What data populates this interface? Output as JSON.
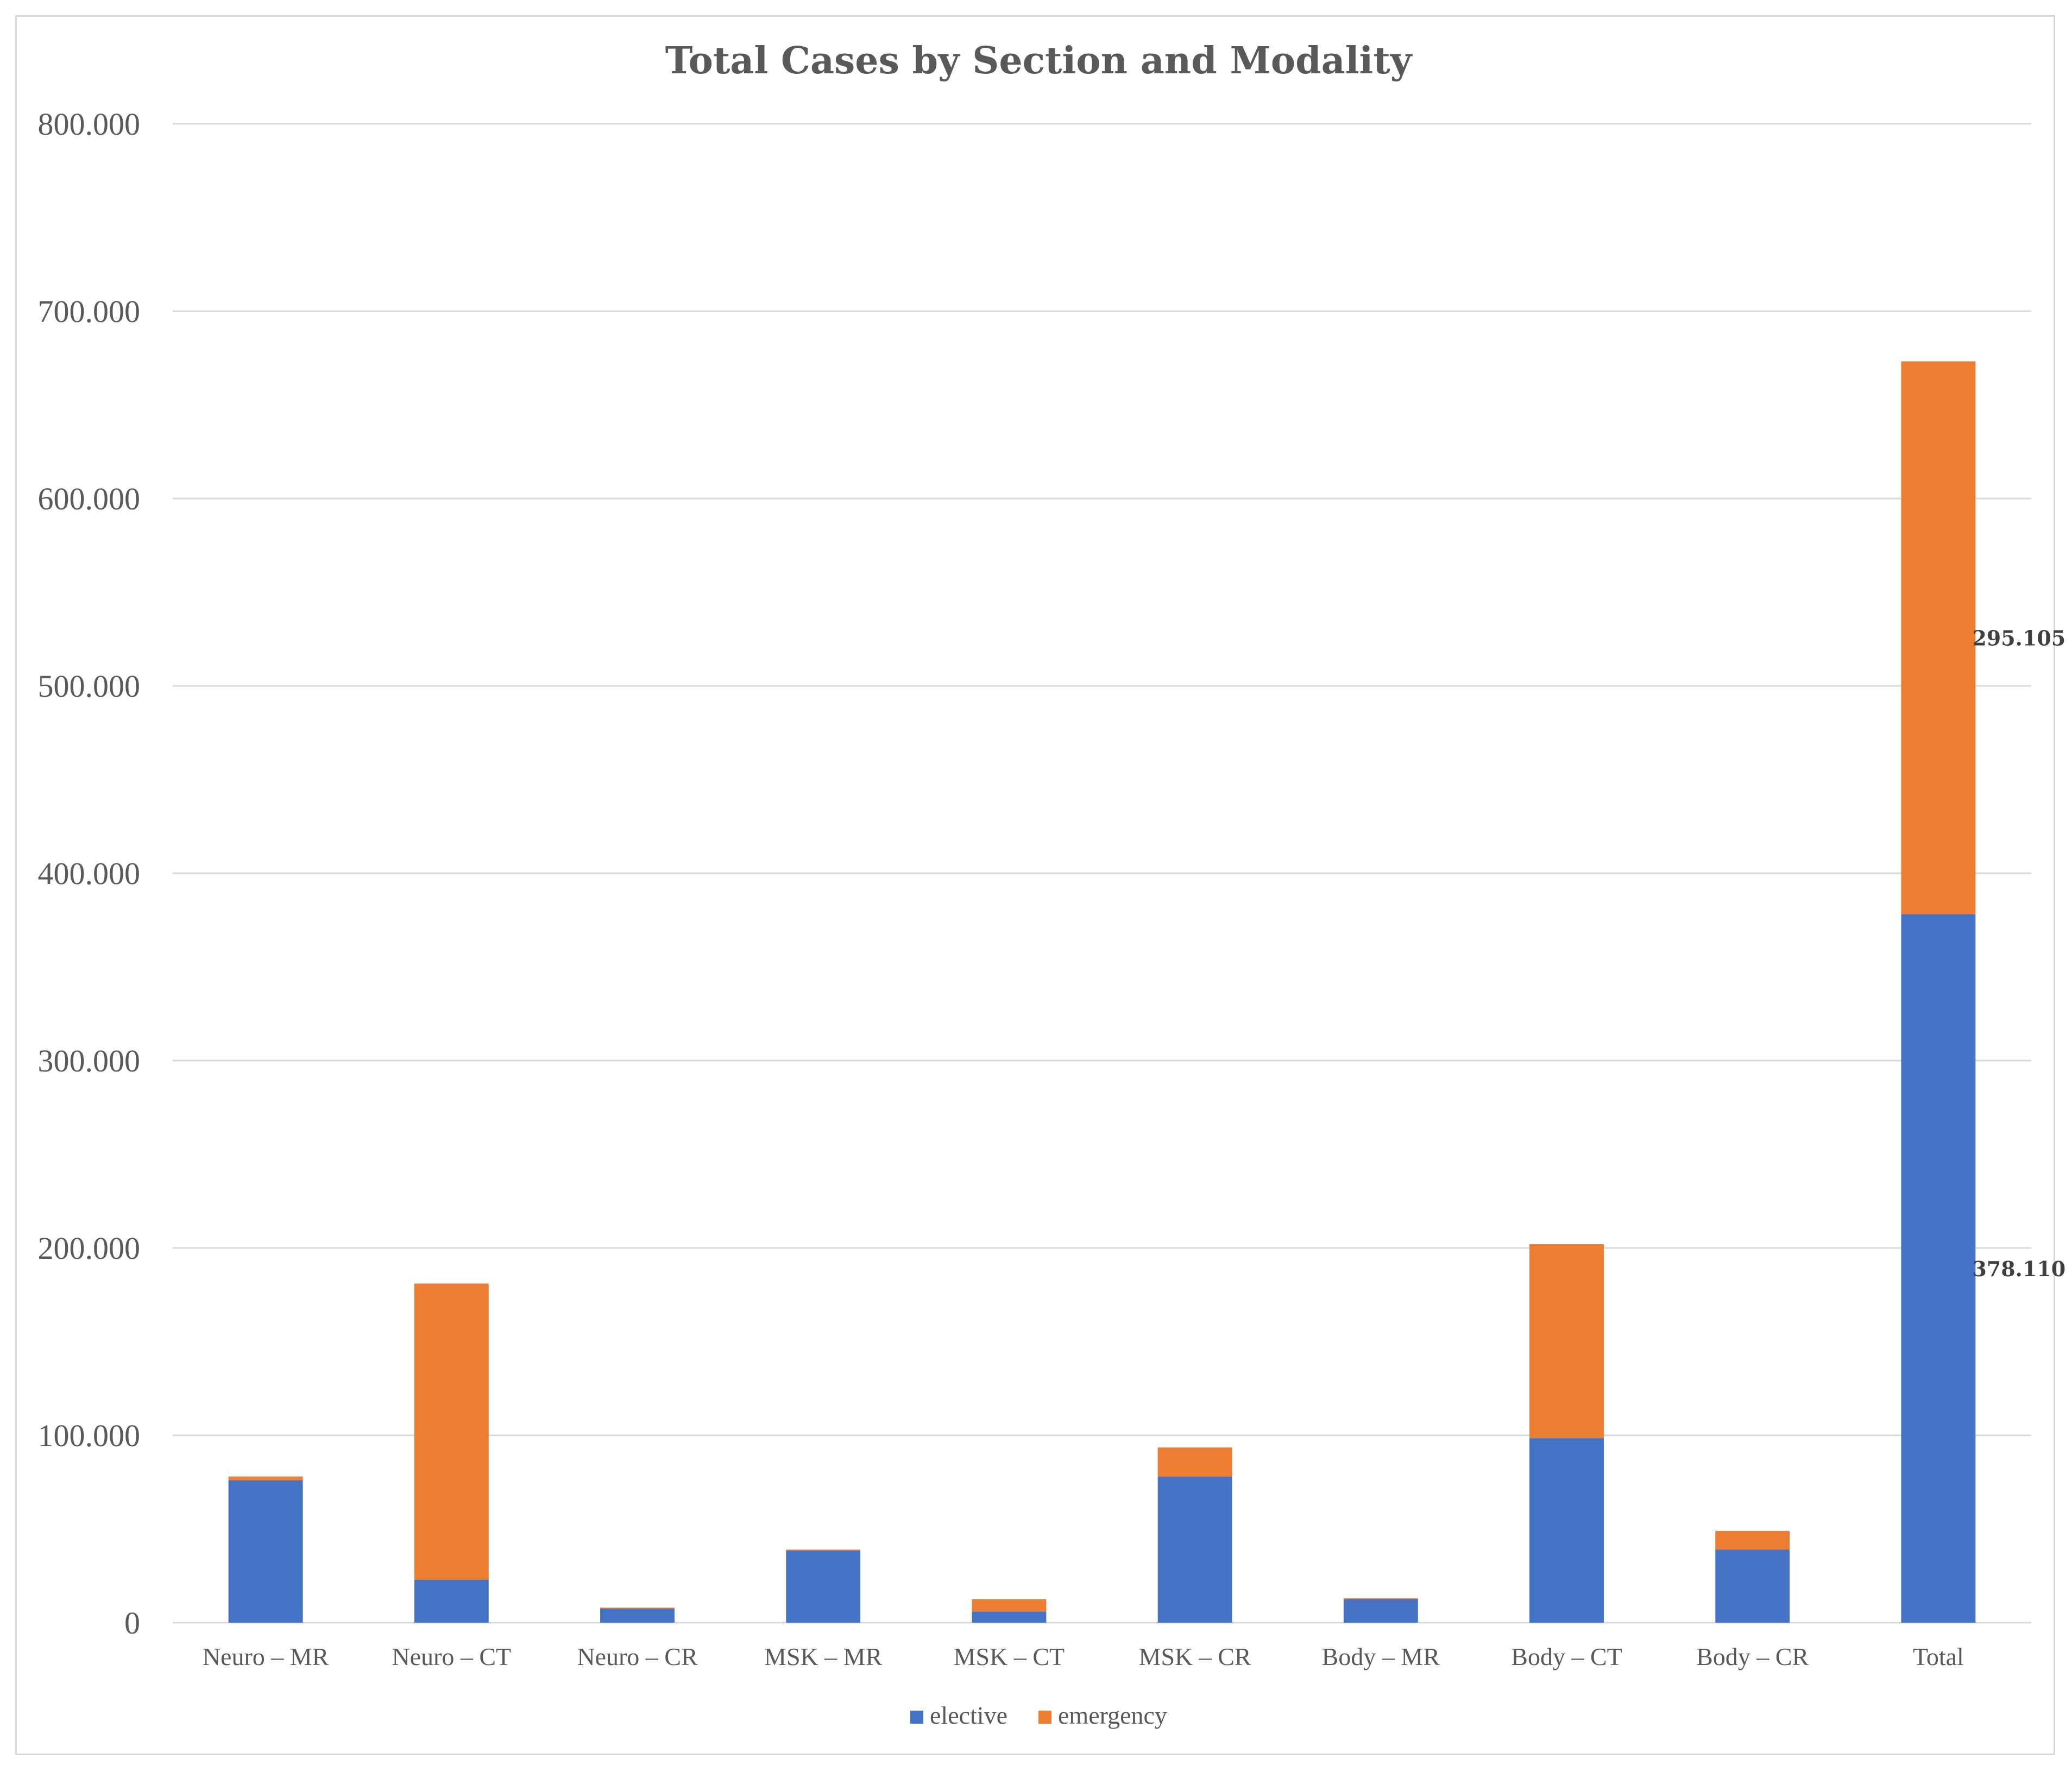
{
  "chart_data": {
    "type": "bar",
    "stacked": true,
    "title": "Total Cases by Section and Modality",
    "xlabel": "",
    "ylabel": "",
    "ylim": [
      0,
      800000
    ],
    "yticks": [
      0,
      100000,
      200000,
      300000,
      400000,
      500000,
      600000,
      700000,
      800000
    ],
    "ytick_labels": [
      "0",
      "100.000",
      "200.000",
      "300.000",
      "400.000",
      "500.000",
      "600.000",
      "700.000",
      "800.000"
    ],
    "categories": [
      "Neuro – MR",
      "Neuro – CT",
      "Neuro – CR",
      "MSK – MR",
      "MSK – CT",
      "MSK – CR",
      "Body – MR",
      "Body – CT",
      "Body – CR",
      "Total"
    ],
    "series": [
      {
        "name": "elective",
        "color": "#4472c4",
        "values": [
          76000,
          23000,
          7500,
          38500,
          6000,
          78000,
          12500,
          98500,
          39000,
          378110
        ]
      },
      {
        "name": "emergency",
        "color": "#ed7d31",
        "values": [
          2000,
          158000,
          500,
          500,
          6500,
          15500,
          500,
          103500,
          10000,
          295105
        ]
      }
    ],
    "data_labels": [
      {
        "category": "Total",
        "series": "elective",
        "text": "378.110"
      },
      {
        "category": "Total",
        "series": "emergency",
        "text": "295.105"
      }
    ],
    "grid": true,
    "legend": "bottom-center"
  }
}
